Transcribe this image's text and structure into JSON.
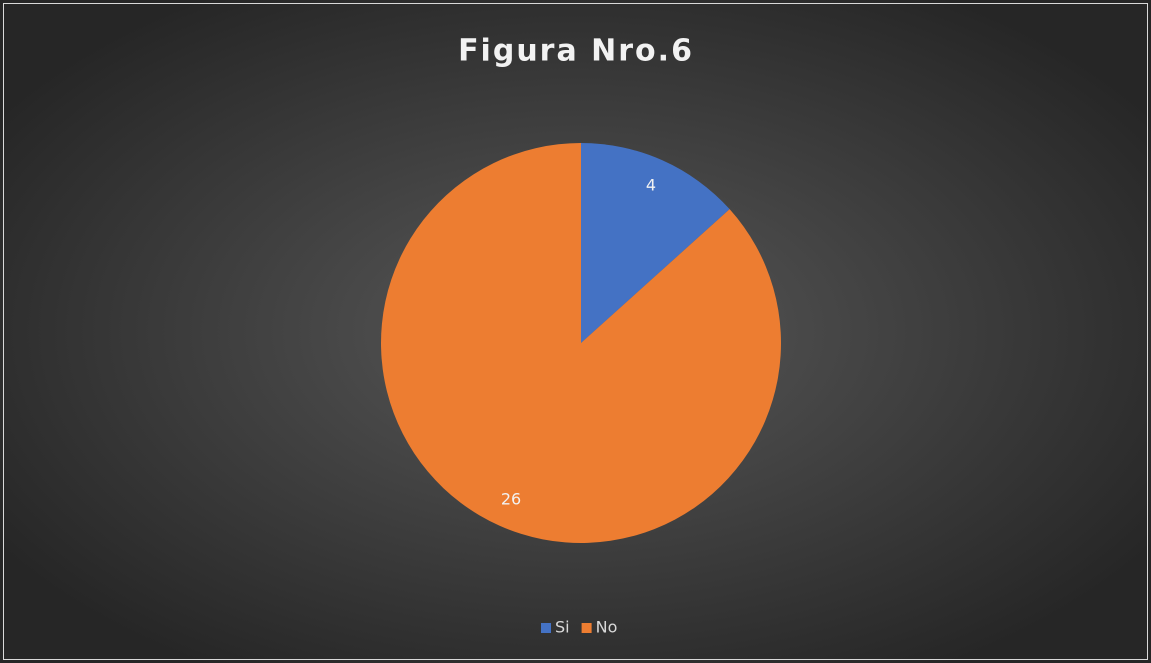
{
  "chart_data": {
    "type": "pie",
    "title": "Figura Nro.6",
    "categories": [
      "Si",
      "No"
    ],
    "values": [
      4,
      26
    ],
    "colors": [
      "#4472c4",
      "#ed7d31"
    ],
    "legend": "bottom"
  }
}
